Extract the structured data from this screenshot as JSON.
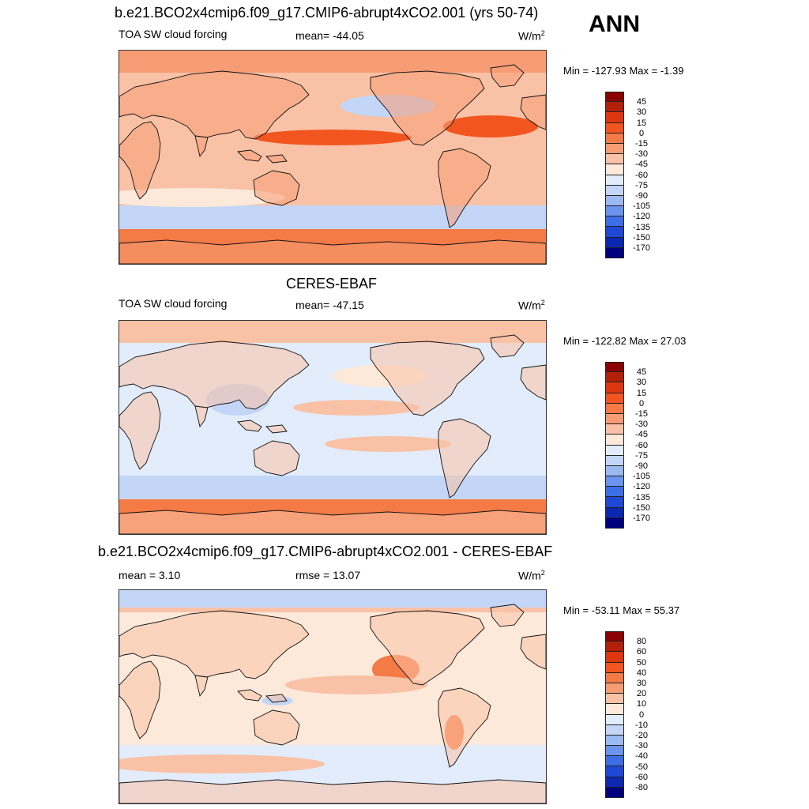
{
  "season": "ANN",
  "panels": [
    {
      "title": "b.e21.BCO2x4cmip6.f09_g17.CMIP6-abrupt4xCO2.001 (yrs 50-74)",
      "left_label": "TOA SW cloud forcing",
      "center_label": "mean= -44.05",
      "units": "W/m",
      "units_sup": "2",
      "minmax": "Min = -127.93 Max =  -1.39",
      "colorbar_labels": [
        "45",
        "30",
        "15",
        "0",
        "-15",
        "-30",
        "-45",
        "-60",
        "-75",
        "-90",
        "-105",
        "-120",
        "-135",
        "-150",
        "-170"
      ],
      "colorbar_colors": [
        "#8b0000",
        "#b3200a",
        "#e0360f",
        "#f2551f",
        "#f47a46",
        "#f79d75",
        "#f9c2a6",
        "#fde9da",
        "#e2ecfb",
        "#c3d6f7",
        "#9bbaf2",
        "#6a94ee",
        "#3c6fe6",
        "#1e48d6",
        "#0a28b0",
        "#00007f"
      ],
      "map_colors": {
        "ocean": "#f9c2a6",
        "south": "#f47a46",
        "band": "#c3d6f7",
        "land": "#f79d75",
        "hot": "#f2551f",
        "pale": "#fde9da"
      }
    },
    {
      "title": "CERES-EBAF",
      "left_label": "TOA SW cloud forcing",
      "center_label": "mean= -47.15",
      "units": "W/m",
      "units_sup": "2",
      "minmax": "Min = -122.82 Max =  27.03",
      "colorbar_labels": [
        "45",
        "30",
        "15",
        "0",
        "-15",
        "-30",
        "-45",
        "-60",
        "-75",
        "-90",
        "-105",
        "-120",
        "-135",
        "-150",
        "-170"
      ],
      "colorbar_colors": [
        "#8b0000",
        "#b3200a",
        "#e0360f",
        "#f2551f",
        "#f47a46",
        "#f79d75",
        "#f9c2a6",
        "#fde9da",
        "#e2ecfb",
        "#c3d6f7",
        "#9bbaf2",
        "#6a94ee",
        "#3c6fe6",
        "#1e48d6",
        "#0a28b0",
        "#00007f"
      ],
      "map_colors": {
        "ocean": "#e2ecfb",
        "south": "#f47a46",
        "band": "#c3d6f7",
        "land": "#f9c2a6",
        "hot": "#f2551f",
        "pale": "#fde9da"
      }
    },
    {
      "title": "b.e21.BCO2x4cmip6.f09_g17.CMIP6-abrupt4xCO2.001 - CERES-EBAF",
      "left_label": "mean =   3.10",
      "center_label": "rmse =  13.07",
      "units": "W/m",
      "units_sup": "2",
      "minmax": "Min = -53.11 Max =  55.37",
      "colorbar_labels": [
        "80",
        "60",
        "50",
        "40",
        "30",
        "20",
        "10",
        "0",
        "-10",
        "-20",
        "-30",
        "-40",
        "-50",
        "-60",
        "-80"
      ],
      "colorbar_colors": [
        "#8b0000",
        "#b3200a",
        "#e0360f",
        "#f2551f",
        "#f47a46",
        "#f79d75",
        "#f9c2a6",
        "#fde9da",
        "#e2ecfb",
        "#c3d6f7",
        "#9bbaf2",
        "#6a94ee",
        "#3c6fe6",
        "#1e48d6",
        "#0a28b0",
        "#00007f"
      ],
      "map_colors": {
        "ocean": "#fde9da",
        "south": "#e2ecfb",
        "band": "#e2ecfb",
        "land": "#f9c2a6",
        "hot": "#f47a46",
        "pale": "#c3d6f7"
      }
    }
  ]
}
